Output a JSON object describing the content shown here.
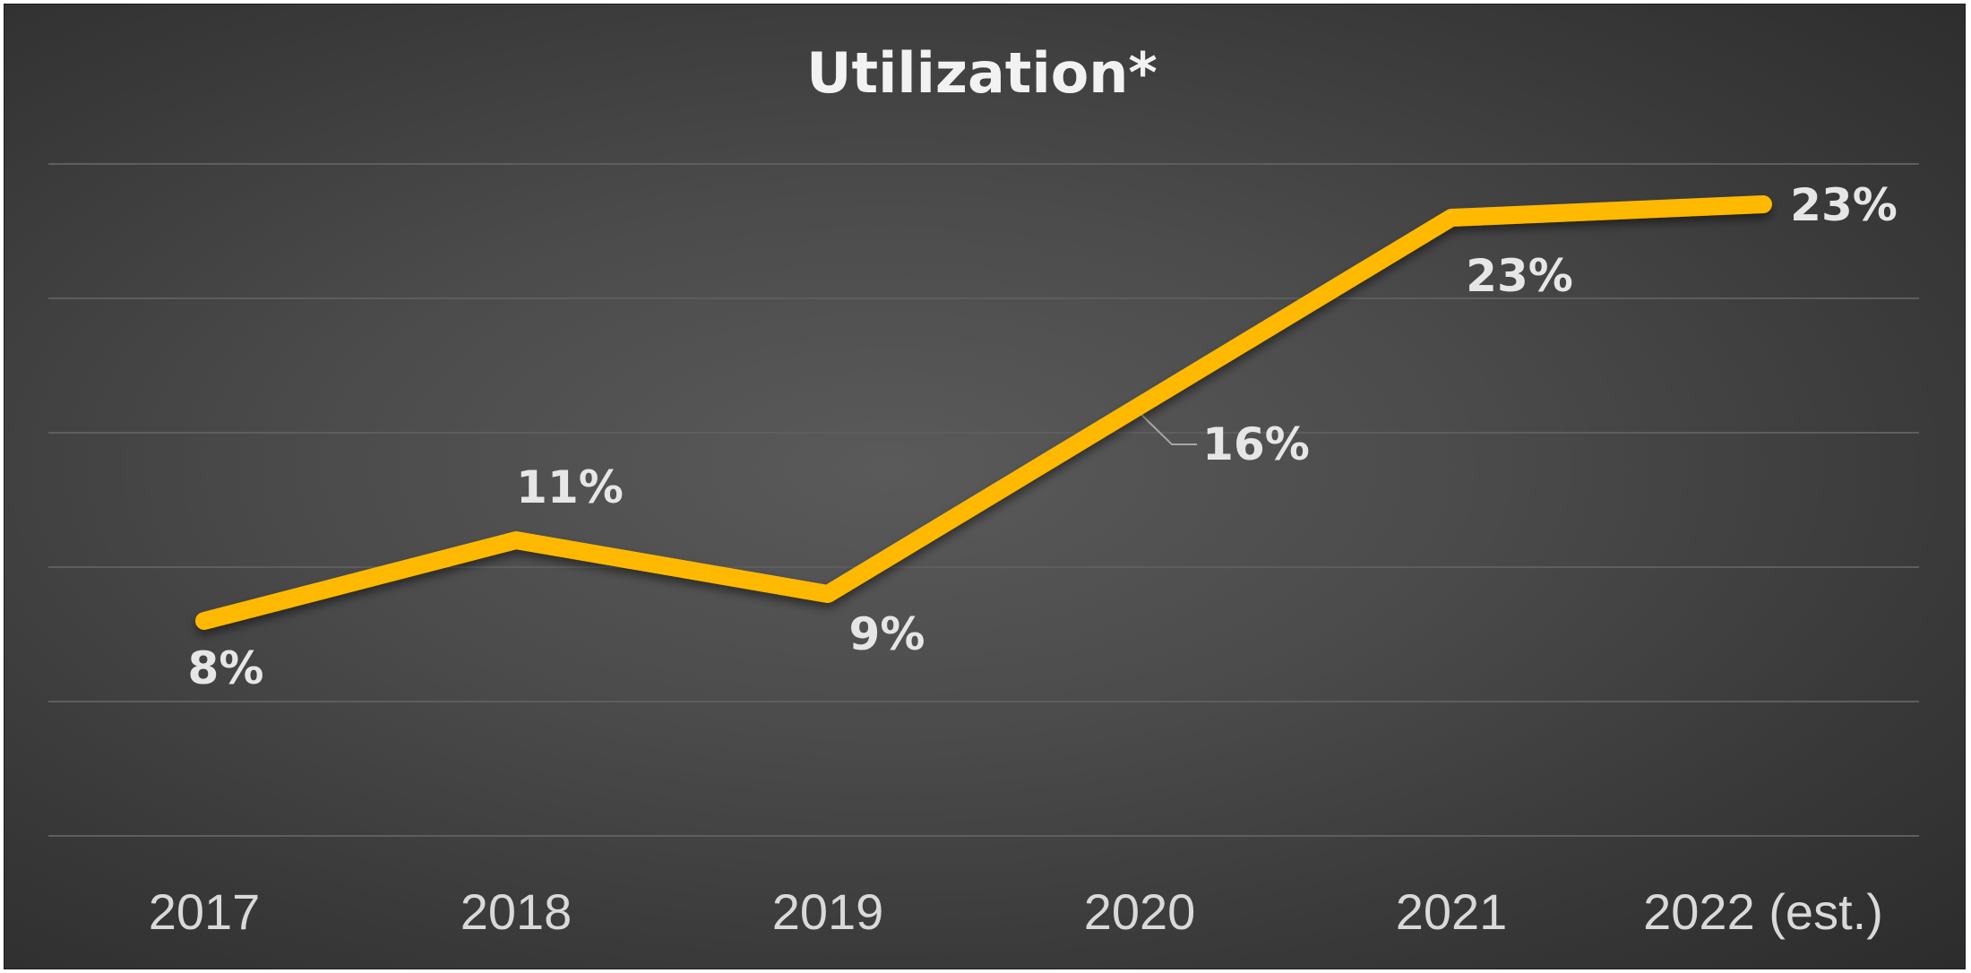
{
  "chart_data": {
    "type": "line",
    "title": "Utilization*",
    "categories": [
      "2017",
      "2018",
      "2019",
      "2020",
      "2021",
      "2022 (est.)"
    ],
    "series": [
      {
        "values": [
          8,
          11,
          9,
          16,
          23,
          23.5
        ],
        "data_labels": [
          "8%",
          "11%",
          "9%",
          "16%",
          "23%",
          "23%"
        ],
        "color": "#FFB900"
      }
    ],
    "ylim": [
      0,
      25
    ],
    "grid": true,
    "legend": "none",
    "background": "#4a4a4a",
    "gridline_color": "#5e5e5e",
    "tick_color": "#d9d9d9"
  }
}
